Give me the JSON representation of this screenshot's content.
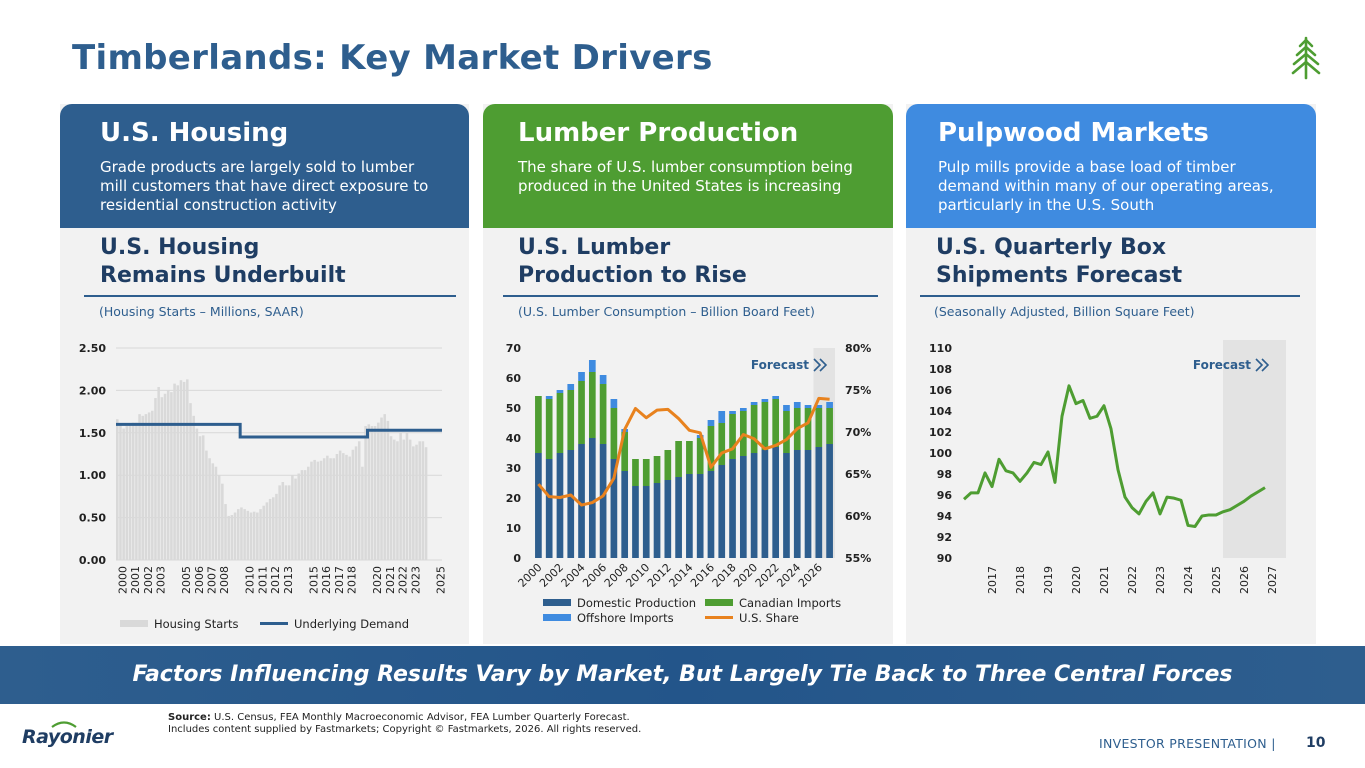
{
  "title": "Timberlands: Key Market Drivers",
  "panels": [
    {
      "title": "U.S. Housing",
      "desc": "Grade products are largely sold to lumber mill customers that have direct exposure to residential construction activity",
      "subtitle_l1": "U.S. Housing",
      "subtitle_l2": "Remains Underbuilt",
      "units": "(Housing Starts – Millions, SAAR)",
      "color": "#2e5e8e"
    },
    {
      "title": "Lumber Production",
      "desc": "The share of U.S. lumber consumption being produced in the United States is increasing",
      "subtitle_l1": "U.S. Lumber",
      "subtitle_l2": "Production to Rise",
      "units": "(U.S. Lumber Consumption – Billion Board Feet)",
      "color": "#4e9d32"
    },
    {
      "title": "Pulpwood Markets",
      "desc": "Pulp mills provide a base load of timber demand within many of our operating areas, particularly in the U.S. South",
      "subtitle_l1": "U.S. Quarterly Box",
      "subtitle_l2": "Shipments Forecast",
      "units": "(Seasonally Adjusted, Billion Square Feet)",
      "color": "#3f8be0"
    }
  ],
  "forecast_label": "Forecast",
  "banner": "Factors Influencing Results Vary by Market, But Largely Tie Back to Three Central Forces",
  "source_bold": "Source:",
  "source_l1": "U.S. Census, FEA Monthly Macroeconomic Advisor, FEA Lumber Quarterly Forecast.",
  "source_l2": "Includes content supplied by Fastmarkets; Copyright © Fastmarkets, 2026. All rights reserved.",
  "brand": "Rayonier",
  "footer_label": "INVESTOR PRESENTATION |",
  "page_number": "10",
  "colors": {
    "housing_bar": "#d9d9d9",
    "demand_line": "#2e5e8e",
    "domestic": "#2e5e8e",
    "canadian": "#4e9d32",
    "offshore": "#3f8be0",
    "share": "#e8821e",
    "box_line": "#4e9d32",
    "forecast_shade": "#e3e3e3"
  },
  "chart_data": [
    {
      "type": "bar",
      "ylim": [
        0,
        2.5
      ],
      "yticks": [
        "0.00",
        "0.50",
        "1.00",
        "1.50",
        "2.00",
        "2.50"
      ],
      "x_labels": [
        "2000",
        "2001",
        "2002",
        "2003",
        "2005",
        "2006",
        "2007",
        "2008",
        "2010",
        "2011",
        "2012",
        "2013",
        "2015",
        "2016",
        "2017",
        "2018",
        "2020",
        "2021",
        "2022",
        "2023",
        "2025"
      ],
      "x_range": [
        2000,
        2025.6
      ],
      "series": [
        {
          "name": "Housing Starts",
          "kind": "bar",
          "start": 2000.0,
          "step": 0.25,
          "values": [
            1.66,
            1.6,
            1.55,
            1.58,
            1.6,
            1.62,
            1.62,
            1.72,
            1.7,
            1.72,
            1.74,
            1.76,
            1.91,
            2.04,
            1.92,
            1.96,
            2.0,
            1.98,
            2.08,
            2.06,
            2.12,
            2.1,
            2.13,
            1.85,
            1.7,
            1.55,
            1.46,
            1.47,
            1.29,
            1.2,
            1.14,
            1.1,
            1.0,
            0.9,
            0.66,
            0.52,
            0.53,
            0.56,
            0.6,
            0.62,
            0.6,
            0.58,
            0.56,
            0.57,
            0.56,
            0.6,
            0.64,
            0.68,
            0.72,
            0.74,
            0.78,
            0.88,
            0.92,
            0.88,
            0.88,
            1.0,
            0.96,
            1.02,
            1.06,
            1.06,
            1.1,
            1.16,
            1.18,
            1.16,
            1.17,
            1.2,
            1.23,
            1.2,
            1.2,
            1.25,
            1.29,
            1.26,
            1.24,
            1.22,
            1.3,
            1.34,
            1.4,
            1.1,
            1.58,
            1.6,
            1.58,
            1.58,
            1.62,
            1.68,
            1.72,
            1.64,
            1.46,
            1.42,
            1.4,
            1.5,
            1.42,
            1.5,
            1.42,
            1.34,
            1.36,
            1.4,
            1.4,
            1.33
          ]
        },
        {
          "name": "Underlying Demand",
          "kind": "step",
          "points": [
            [
              2000,
              1.6
            ],
            [
              2009.75,
              1.6
            ],
            [
              2009.75,
              1.45
            ],
            [
              2019.75,
              1.45
            ],
            [
              2019.75,
              1.53
            ],
            [
              2025.6,
              1.53
            ]
          ]
        }
      ]
    },
    {
      "type": "bar",
      "ylim": [
        0,
        70
      ],
      "y2lim": [
        55,
        80
      ],
      "yticks": [
        "0",
        "10",
        "20",
        "30",
        "40",
        "50",
        "60",
        "70"
      ],
      "y2ticks": [
        "55%",
        "60%",
        "65%",
        "70%",
        "75%",
        "80%"
      ],
      "categories": [
        2000,
        2001,
        2002,
        2003,
        2004,
        2005,
        2006,
        2007,
        2008,
        2009,
        2010,
        2011,
        2012,
        2013,
        2014,
        2015,
        2016,
        2017,
        2018,
        2019,
        2020,
        2021,
        2022,
        2023,
        2024,
        2025,
        2026,
        2027
      ],
      "x_labels": [
        "2000",
        "2002",
        "2004",
        "2006",
        "2008",
        "2010",
        "2012",
        "2014",
        "2016",
        "2018",
        "2020",
        "2022",
        "2024",
        "2026"
      ],
      "forecast_from": 2026,
      "series": [
        {
          "name": "Domestic Production",
          "values": [
            35,
            33,
            35,
            36,
            38,
            40,
            38,
            33,
            29,
            24,
            24,
            25,
            26,
            27,
            28,
            28,
            29,
            31,
            33,
            34,
            35,
            36,
            37,
            35,
            36,
            36,
            37,
            38
          ]
        },
        {
          "name": "Canadian Imports",
          "values": [
            19,
            20,
            20,
            20,
            21,
            22,
            20,
            17,
            13,
            9,
            9,
            9,
            10,
            12,
            11,
            12,
            15,
            14,
            15,
            15,
            16,
            16,
            16,
            14,
            14,
            14,
            13,
            12
          ]
        },
        {
          "name": "Offshore Imports",
          "values": [
            0,
            1,
            1,
            2,
            3,
            4,
            3,
            3,
            1,
            0,
            0,
            0,
            0,
            0,
            0,
            1,
            2,
            4,
            1,
            1,
            1,
            1,
            1,
            2,
            2,
            1,
            1,
            2
          ]
        },
        {
          "name": "U.S. Share",
          "axis": "y2",
          "values": [
            63.8,
            62.3,
            62.2,
            62.5,
            61.3,
            61.6,
            62.4,
            64.5,
            70.3,
            72.8,
            71.7,
            72.6,
            72.7,
            71.6,
            70.2,
            69.9,
            65.8,
            67.5,
            68.0,
            69.7,
            69.2,
            68.0,
            68.4,
            69.1,
            70.4,
            71.1,
            74.0,
            73.9
          ]
        }
      ]
    },
    {
      "type": "line",
      "ylim": [
        90,
        110
      ],
      "yticks": [
        "90",
        "92",
        "94",
        "96",
        "98",
        "100",
        "102",
        "104",
        "106",
        "108",
        "110"
      ],
      "x_labels": [
        "2017",
        "2018",
        "2019",
        "2020",
        "2021",
        "2022",
        "2023",
        "2024",
        "2025",
        "2026",
        "2027"
      ],
      "x_range": [
        2016.5,
        2028.0
      ],
      "forecast_from": 2025.75,
      "series": [
        {
          "name": "Box Shipments",
          "start": 2016.5,
          "step": 0.25,
          "values": [
            95.6,
            96.2,
            96.2,
            98.1,
            96.8,
            99.4,
            98.3,
            98.1,
            97.3,
            98.1,
            99.1,
            98.9,
            100.1,
            97.2,
            103.5,
            106.4,
            104.7,
            105.0,
            103.3,
            103.5,
            104.5,
            102.3,
            98.4,
            95.8,
            94.8,
            94.2,
            95.4,
            96.2,
            94.2,
            95.8,
            95.7,
            95.5,
            93.1,
            93.0,
            94.0,
            94.1,
            94.1,
            94.4,
            94.6,
            95.0,
            95.4,
            95.9,
            96.3,
            96.7
          ]
        }
      ]
    }
  ]
}
